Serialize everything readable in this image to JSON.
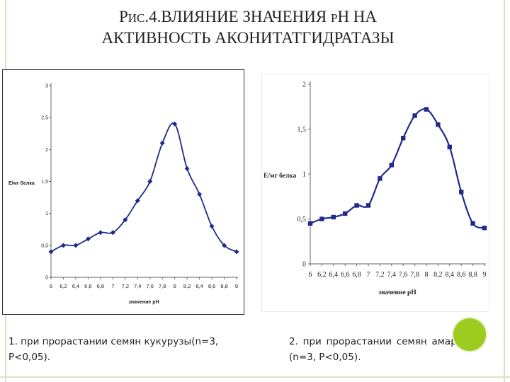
{
  "title": {
    "part1": "Р",
    "part2": "ИС",
    "part3": ".4.ВЛИЯНИЕ ЗНАЧЕНИЯ ",
    "part4": "Р",
    "part5": "Н НА",
    "line2": "АКТИВНОСТЬ АКОНИТАТГИДРАТАЗЫ"
  },
  "captions": {
    "left": "1. при прорастании семян кукурузы(n=3, P<0,05).",
    "right": "2. при прорастании семян амаранта (n=3, P<0,05)."
  },
  "colors": {
    "series": "#1f2a8c",
    "accent_dot": "#9ccc1f"
  },
  "chart_data": [
    {
      "type": "line",
      "title": "",
      "xlabel": "значение рН",
      "ylabel": "Е/мг белка",
      "x_ticks": [
        "6",
        "6,2",
        "6,4",
        "6,6",
        "6,8",
        "7",
        "7,2",
        "7,4",
        "7,6",
        "7,8",
        "8",
        "8,2",
        "8,4",
        "8,6",
        "8,8",
        "9"
      ],
      "y_ticks": [
        "0",
        "0,5",
        "1",
        "1,5",
        "2",
        "2,5",
        "3"
      ],
      "xlim": [
        6,
        9
      ],
      "ylim": [
        0,
        3
      ],
      "x": [
        6,
        6.2,
        6.4,
        6.6,
        6.8,
        7,
        7.2,
        7.4,
        7.6,
        7.8,
        8,
        8.2,
        8.4,
        8.6,
        8.8,
        9
      ],
      "series": [
        {
          "values": [
            0.4,
            0.5,
            0.5,
            0.6,
            0.7,
            0.7,
            0.9,
            1.2,
            1.5,
            2.1,
            2.4,
            1.7,
            1.3,
            0.8,
            0.5,
            0.4
          ]
        }
      ],
      "grid": false
    },
    {
      "type": "line",
      "title": "",
      "xlabel": "значение рН",
      "ylabel": "Е/мг белка",
      "x_ticks": [
        "6",
        "6,2",
        "6,4",
        "6,6",
        "6,8",
        "7",
        "7,2",
        "7,4",
        "7,6",
        "7,8",
        "8",
        "8,2",
        "8,4",
        "8,6",
        "8,8",
        "9"
      ],
      "y_ticks": [
        "0",
        "0,5",
        "1",
        "1,5",
        "2"
      ],
      "xlim": [
        6,
        9
      ],
      "ylim": [
        0,
        2
      ],
      "x": [
        6,
        6.2,
        6.4,
        6.6,
        6.8,
        7,
        7.2,
        7.4,
        7.6,
        7.8,
        8,
        8.2,
        8.4,
        8.6,
        8.8,
        9
      ],
      "series": [
        {
          "values": [
            0.45,
            0.5,
            0.52,
            0.56,
            0.65,
            0.65,
            0.95,
            1.1,
            1.4,
            1.65,
            1.72,
            1.55,
            1.3,
            0.8,
            0.45,
            0.4
          ]
        }
      ],
      "grid": false
    }
  ]
}
